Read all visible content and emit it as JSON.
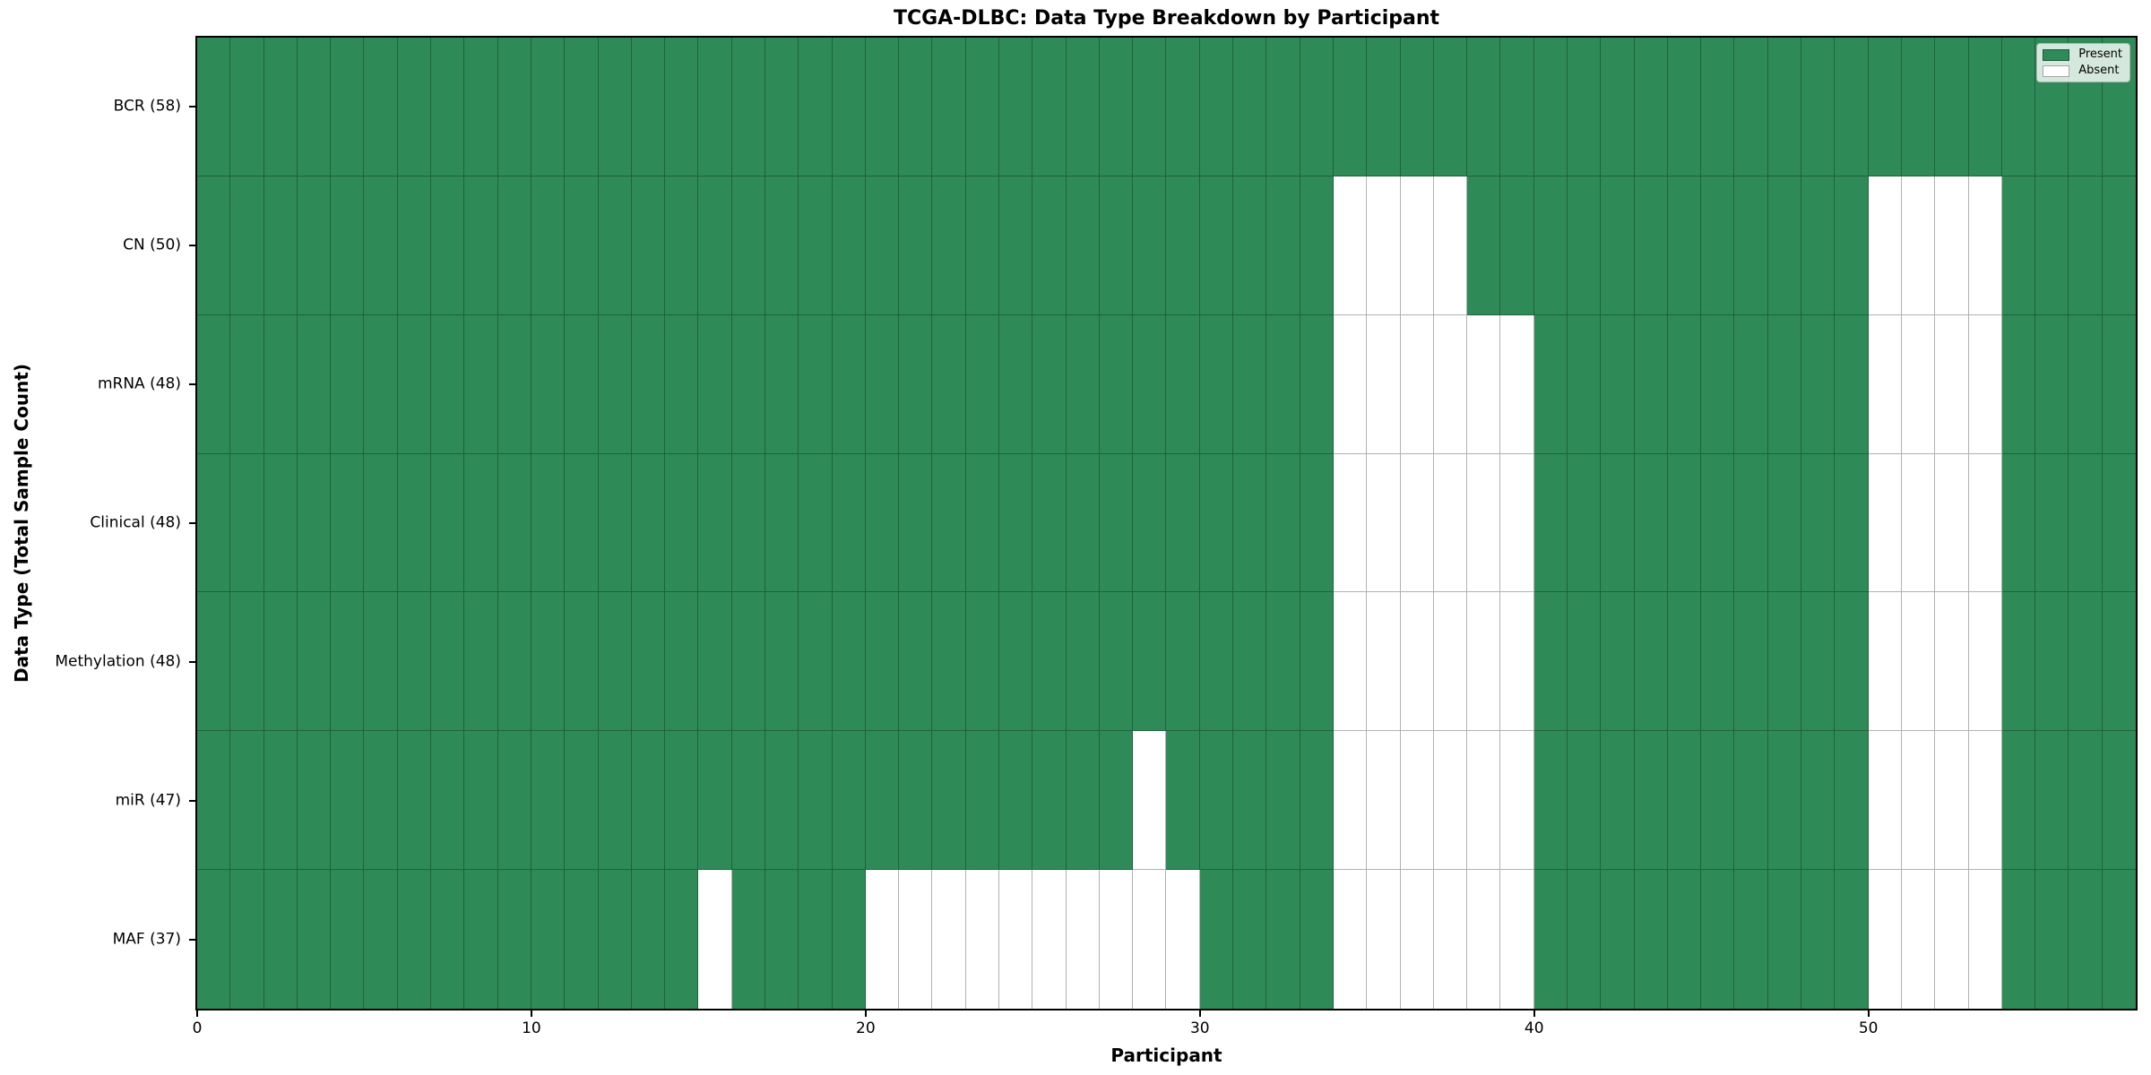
{
  "title": "TCGA-DLBC: Data Type Breakdown by Participant",
  "axes": {
    "x_label": "Participant",
    "y_label": "Data Type (Total Sample Count)"
  },
  "legend": {
    "items": [
      {
        "label": "Present",
        "color": "#2e8b57"
      },
      {
        "label": "Absent",
        "color": "#ffffff"
      }
    ]
  },
  "colors": {
    "present": "#2e8b57",
    "absent": "#ffffff",
    "cell_edge": "rgba(0,0,0,0.30)",
    "spine": "#000000"
  },
  "chart_data": {
    "type": "heatmap",
    "title": "TCGA-DLBC: Data Type Breakdown by Participant",
    "xlabel": "Participant",
    "ylabel": "Data Type (Total Sample Count)",
    "n_participants": 58,
    "x_range": [
      0,
      58
    ],
    "x_ticks": [
      0,
      10,
      20,
      30,
      40,
      50
    ],
    "value_encoding": {
      "present": 1,
      "absent": 0
    },
    "legend_position": "upper right",
    "grid": "cell-edges",
    "rows": [
      {
        "label": "BCR (58)",
        "data_type": "BCR",
        "total_samples": 58,
        "absent_participants": []
      },
      {
        "label": "CN (50)",
        "data_type": "CN",
        "total_samples": 50,
        "absent_participants": [
          34,
          35,
          36,
          37,
          50,
          51,
          52,
          53
        ]
      },
      {
        "label": "mRNA (48)",
        "data_type": "mRNA",
        "total_samples": 48,
        "absent_participants": [
          34,
          35,
          36,
          37,
          38,
          39,
          50,
          51,
          52,
          53
        ]
      },
      {
        "label": "Clinical (48)",
        "data_type": "Clinical",
        "total_samples": 48,
        "absent_participants": [
          34,
          35,
          36,
          37,
          38,
          39,
          50,
          51,
          52,
          53
        ]
      },
      {
        "label": "Methylation (48)",
        "data_type": "Methylation",
        "total_samples": 48,
        "absent_participants": [
          34,
          35,
          36,
          37,
          38,
          39,
          50,
          51,
          52,
          53
        ]
      },
      {
        "label": "miR (47)",
        "data_type": "miR",
        "total_samples": 47,
        "absent_participants": [
          28,
          34,
          35,
          36,
          37,
          38,
          39,
          50,
          51,
          52,
          53
        ]
      },
      {
        "label": "MAF (37)",
        "data_type": "MAF",
        "total_samples": 37,
        "absent_participants": [
          15,
          20,
          21,
          22,
          23,
          24,
          25,
          26,
          27,
          28,
          29,
          34,
          35,
          36,
          37,
          38,
          39,
          50,
          51,
          52,
          53
        ]
      }
    ]
  }
}
